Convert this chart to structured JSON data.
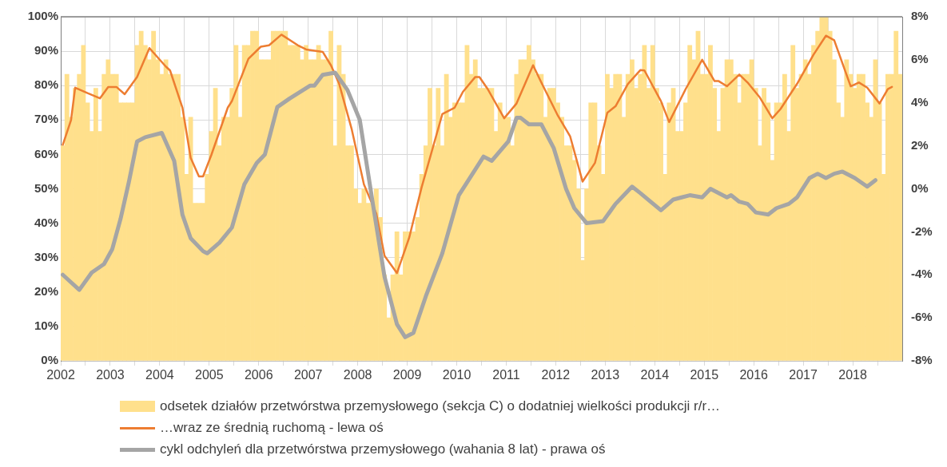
{
  "chart_data": {
    "type": "bar",
    "xlim": [
      "2002",
      "2019"
    ],
    "xticks": [
      "2002",
      {
        "value": "2002-07-01",
        "label": null
      },
      "2003",
      {
        "value": "2003-07-01",
        "label": null
      },
      "2004",
      {
        "value": "2004-07-01",
        "label": null
      },
      "2005",
      {
        "value": "2005-07-01",
        "label": null
      },
      "2006",
      {
        "value": "2006-07-01",
        "label": null
      },
      "2007",
      {
        "value": "2007-07-01",
        "label": null
      },
      "2008",
      {
        "value": "2008-07-01",
        "label": null
      },
      "2009",
      {
        "value": "2009-07-01",
        "label": null
      },
      "2010",
      {
        "value": "2010-07-01",
        "label": null
      },
      "2011",
      {
        "value": "2011-07-01",
        "label": null
      },
      "2012",
      {
        "value": "2012-07-01",
        "label": null
      },
      "2013",
      {
        "value": "2013-07-01",
        "label": null
      },
      "2014",
      {
        "value": "2014-07-01",
        "label": null
      },
      "2015",
      {
        "value": "2015-07-01",
        "label": null
      },
      "2016",
      {
        "value": "2016-07-01",
        "label": null
      },
      "2017",
      {
        "value": "2017-07-01",
        "label": null
      },
      "2018",
      {
        "value": "2018-07-01",
        "label": null
      }
    ],
    "ylim": [
      0,
      100
    ],
    "yticks": [
      {
        "value": 0,
        "label": "0%"
      },
      {
        "value": 10,
        "label": "10%"
      },
      {
        "value": 20,
        "label": "20%"
      },
      {
        "value": 30,
        "label": "30%"
      },
      {
        "value": 40,
        "label": "40%"
      },
      {
        "value": 50,
        "label": "50%"
      },
      {
        "value": 60,
        "label": "60%"
      },
      {
        "value": 70,
        "label": "70%"
      },
      {
        "value": 80,
        "label": "80%"
      },
      {
        "value": 90,
        "label": "90%"
      },
      {
        "value": 100,
        "label": "100%"
      }
    ],
    "y2lim": [
      -8,
      8
    ],
    "y2ticks": [
      {
        "value": -8,
        "label": "-8%"
      },
      {
        "value": -6,
        "label": "-6%"
      },
      {
        "value": -4,
        "label": "-4%"
      },
      {
        "value": -2,
        "label": "-2%"
      },
      {
        "value": 0,
        "label": "0%"
      },
      {
        "value": 2,
        "label": "2%"
      },
      {
        "value": 4,
        "label": "4%"
      },
      {
        "value": 6,
        "label": "6%"
      },
      {
        "value": 8,
        "label": "8%"
      }
    ],
    "grid": true,
    "legend": "bottom",
    "marker": "none",
    "x": [
      "2002-01",
      "2002-02",
      "2002-03",
      "2002-04",
      "2002-05",
      "2002-06",
      "2002-07",
      "2002-08",
      "2002-09",
      "2002-10",
      "2002-11",
      "2002-12",
      "2003-01",
      "2003-02",
      "2003-03",
      "2003-04",
      "2003-05",
      "2003-06",
      "2003-07",
      "2003-08",
      "2003-09",
      "2003-10",
      "2003-11",
      "2003-12",
      "2004-01",
      "2004-02",
      "2004-03",
      "2004-04",
      "2004-05",
      "2004-06",
      "2004-07",
      "2004-08",
      "2004-09",
      "2004-10",
      "2004-11",
      "2004-12",
      "2005-01",
      "2005-02",
      "2005-03",
      "2005-04",
      "2005-05",
      "2005-06",
      "2005-07",
      "2005-08",
      "2005-09",
      "2005-10",
      "2005-11",
      "2005-12",
      "2006-01",
      "2006-02",
      "2006-03",
      "2006-04",
      "2006-05",
      "2006-06",
      "2006-07",
      "2006-08",
      "2006-09",
      "2006-10",
      "2006-11",
      "2006-12",
      "2007-01",
      "2007-02",
      "2007-03",
      "2007-04",
      "2007-05",
      "2007-06",
      "2007-07",
      "2007-08",
      "2007-09",
      "2007-10",
      "2007-11",
      "2007-12",
      "2008-01",
      "2008-02",
      "2008-03",
      "2008-04",
      "2008-05",
      "2008-06",
      "2008-07",
      "2008-08",
      "2008-09",
      "2008-10",
      "2008-11",
      "2008-12",
      "2009-01",
      "2009-02",
      "2009-03",
      "2009-04",
      "2009-05",
      "2009-06",
      "2009-07",
      "2009-08",
      "2009-09",
      "2009-10",
      "2009-11",
      "2009-12",
      "2010-01",
      "2010-02",
      "2010-03",
      "2010-04",
      "2010-05",
      "2010-06",
      "2010-07",
      "2010-08",
      "2010-09",
      "2010-10",
      "2010-11",
      "2010-12",
      "2011-01",
      "2011-02",
      "2011-03",
      "2011-04",
      "2011-05",
      "2011-06",
      "2011-07",
      "2011-08",
      "2011-09",
      "2011-10",
      "2011-11",
      "2011-12",
      "2012-01",
      "2012-02",
      "2012-03",
      "2012-04",
      "2012-05",
      "2012-06",
      "2012-07",
      "2012-08",
      "2012-09",
      "2012-10",
      "2012-11",
      "2012-12",
      "2013-01",
      "2013-02",
      "2013-03",
      "2013-04",
      "2013-05",
      "2013-06",
      "2013-07",
      "2013-08",
      "2013-09",
      "2013-10",
      "2013-11",
      "2013-12",
      "2014-01",
      "2014-02",
      "2014-03",
      "2014-04",
      "2014-05",
      "2014-06",
      "2014-07",
      "2014-08",
      "2014-09",
      "2014-10",
      "2014-11",
      "2014-12",
      "2015-01",
      "2015-02",
      "2015-03",
      "2015-04",
      "2015-05",
      "2015-06",
      "2015-07",
      "2015-08",
      "2015-09",
      "2015-10",
      "2015-11",
      "2015-12",
      "2016-01",
      "2016-02",
      "2016-03",
      "2016-04",
      "2016-05",
      "2016-06",
      "2016-07",
      "2016-08",
      "2016-09",
      "2016-10",
      "2016-11",
      "2016-12",
      "2017-01",
      "2017-02",
      "2017-03",
      "2017-04",
      "2017-05",
      "2017-06",
      "2017-07",
      "2017-08",
      "2017-09",
      "2017-10",
      "2017-11",
      "2017-12",
      "2018-01",
      "2018-02",
      "2018-03",
      "2018-04",
      "2018-05",
      "2018-06",
      "2018-07",
      "2018-08",
      "2018-09",
      "2018-10",
      "2018-11",
      "2018-12"
    ],
    "series": [
      {
        "name": "odsetek działów przetwórstwa przemysłowego (sekcja C) o dodatniej wielkości produkcji r/r…",
        "color": "#ffe08c",
        "values": [
          62.5,
          83.3,
          70.8,
          79.2,
          83.3,
          91.7,
          75,
          66.7,
          79.2,
          66.7,
          83.3,
          87.5,
          83.3,
          83.3,
          75,
          75,
          75,
          75,
          91.7,
          95.8,
          91.7,
          87.5,
          95.8,
          87.5,
          83.3,
          87.5,
          83.3,
          83.3,
          83.3,
          70.8,
          54.2,
          70.8,
          45.8,
          45.8,
          45.8,
          54.2,
          66.7,
          79.2,
          62.5,
          70.8,
          70.8,
          79.2,
          91.7,
          70.8,
          91.7,
          91.7,
          95.8,
          95.8,
          87.5,
          87.5,
          87.5,
          95.8,
          95.8,
          95.8,
          95.8,
          91.7,
          91.7,
          91.7,
          87.5,
          91.7,
          87.5,
          87.5,
          91.7,
          87.5,
          87.5,
          95.8,
          62.5,
          91.7,
          83.3,
          62.5,
          62.5,
          50,
          45.8,
          50,
          45.8,
          45.8,
          50,
          41.7,
          25,
          12.5,
          25,
          37.5,
          25,
          37.5,
          37.5,
          37.5,
          41.7,
          54.2,
          62.5,
          79.2,
          62.5,
          79.2,
          62.5,
          83.3,
          70.8,
          75,
          75,
          75,
          91.7,
          83.3,
          87.5,
          79.2,
          79.2,
          79.2,
          79.2,
          66.7,
          75,
          70.8,
          70.8,
          62.5,
          83.3,
          87.5,
          87.5,
          91.7,
          87.5,
          83.3,
          83.3,
          70.8,
          79.2,
          79.2,
          75,
          70.8,
          62.5,
          62.5,
          58.3,
          50,
          29.2,
          50,
          75,
          75,
          62.5,
          54.2,
          83.3,
          79.2,
          83.3,
          83.3,
          70.8,
          83.3,
          87.5,
          79.2,
          83.3,
          91.7,
          79.2,
          91.7,
          79.2,
          75,
          54.2,
          75,
          79.2,
          66.7,
          66.7,
          75,
          91.7,
          87.5,
          95.8,
          83.3,
          83.3,
          91.7,
          79.2,
          66.7,
          79.2,
          87.5,
          87.5,
          83.3,
          75,
          83.3,
          83.3,
          87.5,
          79.2,
          62.5,
          79.2,
          75,
          58.3,
          75,
          75,
          83.3,
          66.7,
          91.7,
          79.2,
          83.3,
          87.5,
          83.3,
          91.7,
          95.8,
          100,
          100,
          95.8,
          87.5,
          75,
          70.8,
          87.5,
          83.3,
          79.2,
          83.3,
          83.3,
          75,
          70.8,
          87.5,
          75,
          54.2,
          83.3,
          83.3,
          95.8,
          83.3
        ]
      },
      {
        "name": "…wraz ze średnią ruchomą - lewa oś",
        "type": "line",
        "color": "#ed7d31",
        "x": [
          "2002-01",
          "2002-03",
          "2002-04",
          "2002-07",
          "2002-10",
          "2002-12",
          "2003-02",
          "2003-04",
          "2003-07",
          "2003-10",
          "2004-02",
          "2004-03",
          "2004-06",
          "2004-08",
          "2004-10",
          "2004-11",
          "2005-01",
          "2005-05",
          "2005-06",
          "2005-10",
          "2006-01",
          "2006-03",
          "2006-06",
          "2006-10",
          "2006-12",
          "2007-04",
          "2007-06",
          "2007-08",
          "2007-11",
          "2008-02",
          "2008-05",
          "2008-07",
          "2008-10",
          "2009-01",
          "2009-04",
          "2009-09",
          "2009-12",
          "2010-02",
          "2010-05",
          "2010-06",
          "2010-08",
          "2010-12",
          "2011-03",
          "2011-07",
          "2011-09",
          "2012-01",
          "2012-04",
          "2012-07",
          "2012-10",
          "2013-01",
          "2013-03",
          "2013-06",
          "2013-09",
          "2013-10",
          "2014-02",
          "2014-04",
          "2014-08",
          "2014-12",
          "2015-03",
          "2015-04",
          "2015-06",
          "2015-09",
          "2015-11",
          "2016-02",
          "2016-05",
          "2016-07",
          "2016-11",
          "2017-03",
          "2017-06",
          "2017-08",
          "2017-12",
          "2018-02",
          "2018-04",
          "2018-07",
          "2018-09",
          "2018-10"
        ],
        "values": [
          62.8,
          70,
          79.4,
          77.8,
          76.3,
          79.6,
          79.6,
          77.5,
          82.5,
          90.9,
          85.5,
          84.4,
          73.6,
          59,
          53.6,
          53.6,
          59.8,
          73.6,
          75.5,
          87.8,
          91.3,
          91.7,
          94.8,
          91.7,
          90.5,
          89.8,
          85.9,
          80.5,
          67.5,
          51.3,
          42.8,
          30.5,
          25.5,
          35.9,
          50.5,
          71.7,
          73.6,
          78.2,
          82.5,
          82.5,
          79,
          70.5,
          74.8,
          85.9,
          80.9,
          71.3,
          65.2,
          52.1,
          57.5,
          72.1,
          74,
          80.5,
          84.5,
          84.4,
          75.5,
          69.4,
          79,
          87.5,
          81.3,
          81.3,
          79.8,
          83.2,
          80.9,
          76.5,
          70.5,
          73.2,
          80.5,
          89,
          94.5,
          93.2,
          79.8,
          80.9,
          79.4,
          74.8,
          79,
          79.6
        ]
      },
      {
        "name": "cykl odchyleń dla przetwórstwa przemysłowego (wahania 8 lat) - prawa oś",
        "type": "line",
        "axis": "y2",
        "color": "#a5a5a5",
        "x": [
          "2002-01",
          "2002-05",
          "2002-08",
          "2002-11",
          "2003-01",
          "2003-03",
          "2003-05",
          "2003-07",
          "2003-09",
          "2004-01",
          "2004-04",
          "2004-06",
          "2004-08",
          "2004-11",
          "2004-12",
          "2005-03",
          "2005-06",
          "2005-09",
          "2005-12",
          "2006-02",
          "2006-05",
          "2006-08",
          "2007-01",
          "2007-02",
          "2007-04",
          "2007-07",
          "2007-10",
          "2008-01",
          "2008-04",
          "2008-07",
          "2008-10",
          "2008-12",
          "2009-02",
          "2009-05",
          "2009-09",
          "2010-01",
          "2010-04",
          "2010-07",
          "2010-09",
          "2011-01",
          "2011-03",
          "2011-04",
          "2011-06",
          "2011-09",
          "2011-12",
          "2012-03",
          "2012-05",
          "2012-08",
          "2012-12",
          "2013-03",
          "2013-07",
          "2013-09",
          "2014-02",
          "2014-05",
          "2014-07",
          "2014-09",
          "2014-12",
          "2015-02",
          "2015-06",
          "2015-07",
          "2015-09",
          "2015-11",
          "2016-01",
          "2016-04",
          "2016-06",
          "2016-09",
          "2016-11",
          "2017-02",
          "2017-04",
          "2017-06",
          "2017-08",
          "2017-10",
          "2018-01",
          "2018-04",
          "2018-06"
        ],
        "values": [
          -4.0,
          -4.7,
          -3.9,
          -3.5,
          -2.8,
          -1.4,
          0.3,
          2.2,
          2.4,
          2.6,
          1.3,
          -1.2,
          -2.3,
          -2.9,
          -3.0,
          -2.5,
          -1.8,
          0.2,
          1.2,
          1.6,
          3.8,
          4.2,
          4.8,
          4.8,
          5.3,
          5.4,
          4.6,
          3.2,
          -0.5,
          -4.1,
          -6.3,
          -6.9,
          -6.7,
          -5.0,
          -3.0,
          -0.3,
          0.6,
          1.5,
          1.3,
          2.2,
          3.3,
          3.3,
          3.0,
          3.0,
          1.9,
          0.0,
          -0.9,
          -1.6,
          -1.5,
          -0.7,
          0.1,
          -0.2,
          -1.0,
          -0.5,
          -0.4,
          -0.3,
          -0.4,
          0.0,
          -0.4,
          -0.3,
          -0.6,
          -0.7,
          -1.1,
          -1.2,
          -0.9,
          -0.7,
          -0.4,
          0.5,
          0.7,
          0.5,
          0.7,
          0.8,
          0.5,
          0.1,
          0.4
        ]
      }
    ]
  }
}
